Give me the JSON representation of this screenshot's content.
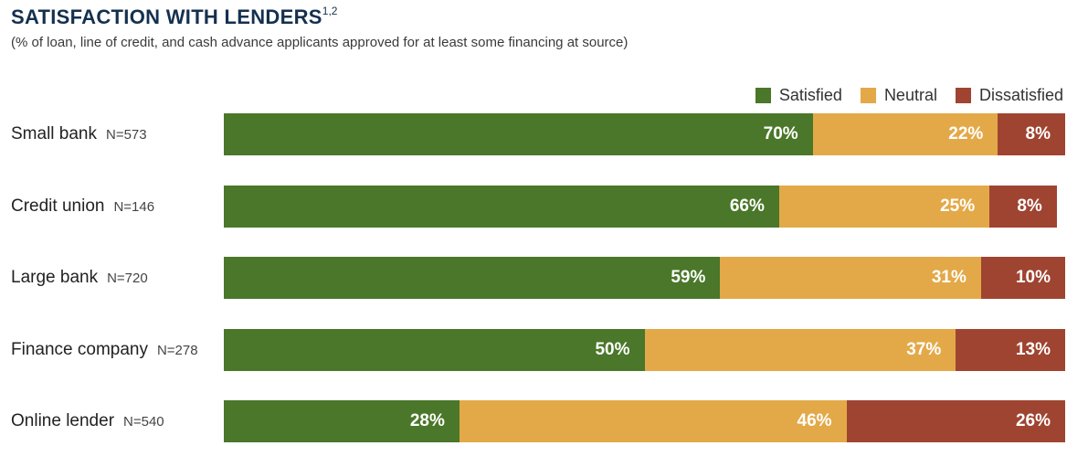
{
  "chart_data": {
    "type": "bar",
    "orientation": "horizontal",
    "stacked": true,
    "title": "SATISFACTION WITH LENDERS",
    "title_superscript": "1,2",
    "subtitle": "(% of loan, line of credit, and cash advance applicants approved for at least some financing at source)",
    "categories": [
      "Small bank",
      "Credit union",
      "Large bank",
      "Finance company",
      "Online lender"
    ],
    "sample_sizes": [
      "N=573",
      "N=146",
      "N=720",
      "N=278",
      "N=540"
    ],
    "series": [
      {
        "name": "Satisfied",
        "color": "#4a7729",
        "values": [
          70,
          66,
          59,
          50,
          28
        ]
      },
      {
        "name": "Neutral",
        "color": "#e3a948",
        "values": [
          22,
          25,
          31,
          37,
          46
        ]
      },
      {
        "name": "Dissatisfied",
        "color": "#9f4431",
        "values": [
          8,
          8,
          10,
          13,
          26
        ]
      }
    ],
    "value_suffix": "%",
    "xlim": [
      0,
      100
    ],
    "legend_position": "top-right",
    "grid": false
  }
}
